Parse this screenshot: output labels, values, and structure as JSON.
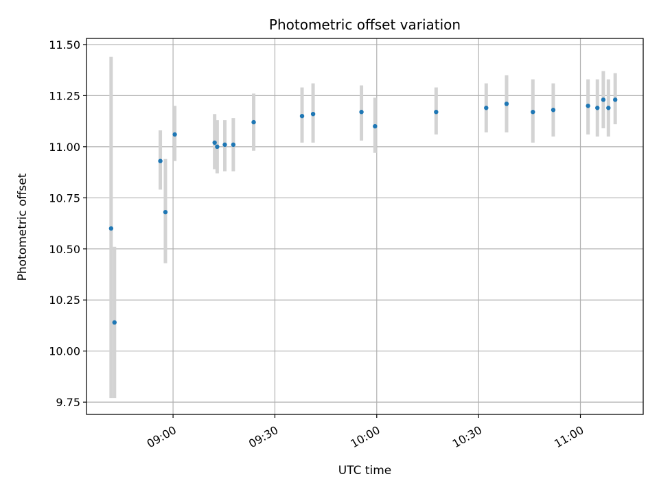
{
  "chart_data": {
    "type": "scatter",
    "title": "Photometric offset variation",
    "xlabel": "UTC time",
    "ylabel": "Photometric offset",
    "xlim": [
      "08:34:30",
      "11:18:30"
    ],
    "ylim": [
      9.69,
      11.53
    ],
    "grid": true,
    "x_ticks": [
      "09:00",
      "09:30",
      "10:00",
      "10:30",
      "11:00"
    ],
    "y_ticks": [
      "9.75",
      "10.00",
      "10.25",
      "10.50",
      "10.75",
      "11.00",
      "11.25",
      "11.50"
    ],
    "colors": {
      "point": "#1f77b4",
      "errorbar": "#d3d3d3",
      "grid": "#b0b0b0"
    },
    "points": [
      {
        "x": "08:41:45",
        "y": 10.6,
        "ylow": 9.77,
        "yhigh": 11.44
      },
      {
        "x": "08:42:45",
        "y": 10.14,
        "ylow": 9.77,
        "yhigh": 10.51
      },
      {
        "x": "08:56:15",
        "y": 10.93,
        "ylow": 10.79,
        "yhigh": 11.08
      },
      {
        "x": "08:57:45",
        "y": 10.68,
        "ylow": 10.43,
        "yhigh": 10.94
      },
      {
        "x": "09:00:30",
        "y": 11.06,
        "ylow": 10.93,
        "yhigh": 11.2
      },
      {
        "x": "09:12:15",
        "y": 11.02,
        "ylow": 10.89,
        "yhigh": 11.16
      },
      {
        "x": "09:13:00",
        "y": 11.0,
        "ylow": 10.87,
        "yhigh": 11.13
      },
      {
        "x": "09:15:15",
        "y": 11.01,
        "ylow": 10.88,
        "yhigh": 11.13
      },
      {
        "x": "09:17:45",
        "y": 11.01,
        "ylow": 10.88,
        "yhigh": 11.14
      },
      {
        "x": "09:23:45",
        "y": 11.12,
        "ylow": 10.98,
        "yhigh": 11.26
      },
      {
        "x": "09:38:00",
        "y": 11.15,
        "ylow": 11.02,
        "yhigh": 11.29
      },
      {
        "x": "09:41:15",
        "y": 11.16,
        "ylow": 11.02,
        "yhigh": 11.31
      },
      {
        "x": "09:55:30",
        "y": 11.17,
        "ylow": 11.03,
        "yhigh": 11.3
      },
      {
        "x": "09:59:30",
        "y": 11.1,
        "ylow": 10.97,
        "yhigh": 11.24
      },
      {
        "x": "10:17:30",
        "y": 11.17,
        "ylow": 11.06,
        "yhigh": 11.29
      },
      {
        "x": "10:32:15",
        "y": 11.19,
        "ylow": 11.07,
        "yhigh": 11.31
      },
      {
        "x": "10:38:15",
        "y": 11.21,
        "ylow": 11.07,
        "yhigh": 11.35
      },
      {
        "x": "10:46:00",
        "y": 11.17,
        "ylow": 11.02,
        "yhigh": 11.33
      },
      {
        "x": "10:52:00",
        "y": 11.18,
        "ylow": 11.05,
        "yhigh": 11.31
      },
      {
        "x": "11:02:15",
        "y": 11.2,
        "ylow": 11.06,
        "yhigh": 11.33
      },
      {
        "x": "11:05:00",
        "y": 11.19,
        "ylow": 11.05,
        "yhigh": 11.33
      },
      {
        "x": "11:06:45",
        "y": 11.23,
        "ylow": 11.09,
        "yhigh": 11.37
      },
      {
        "x": "11:08:15",
        "y": 11.19,
        "ylow": 11.05,
        "yhigh": 11.33
      },
      {
        "x": "11:10:15",
        "y": 11.23,
        "ylow": 11.11,
        "yhigh": 11.36
      }
    ]
  }
}
